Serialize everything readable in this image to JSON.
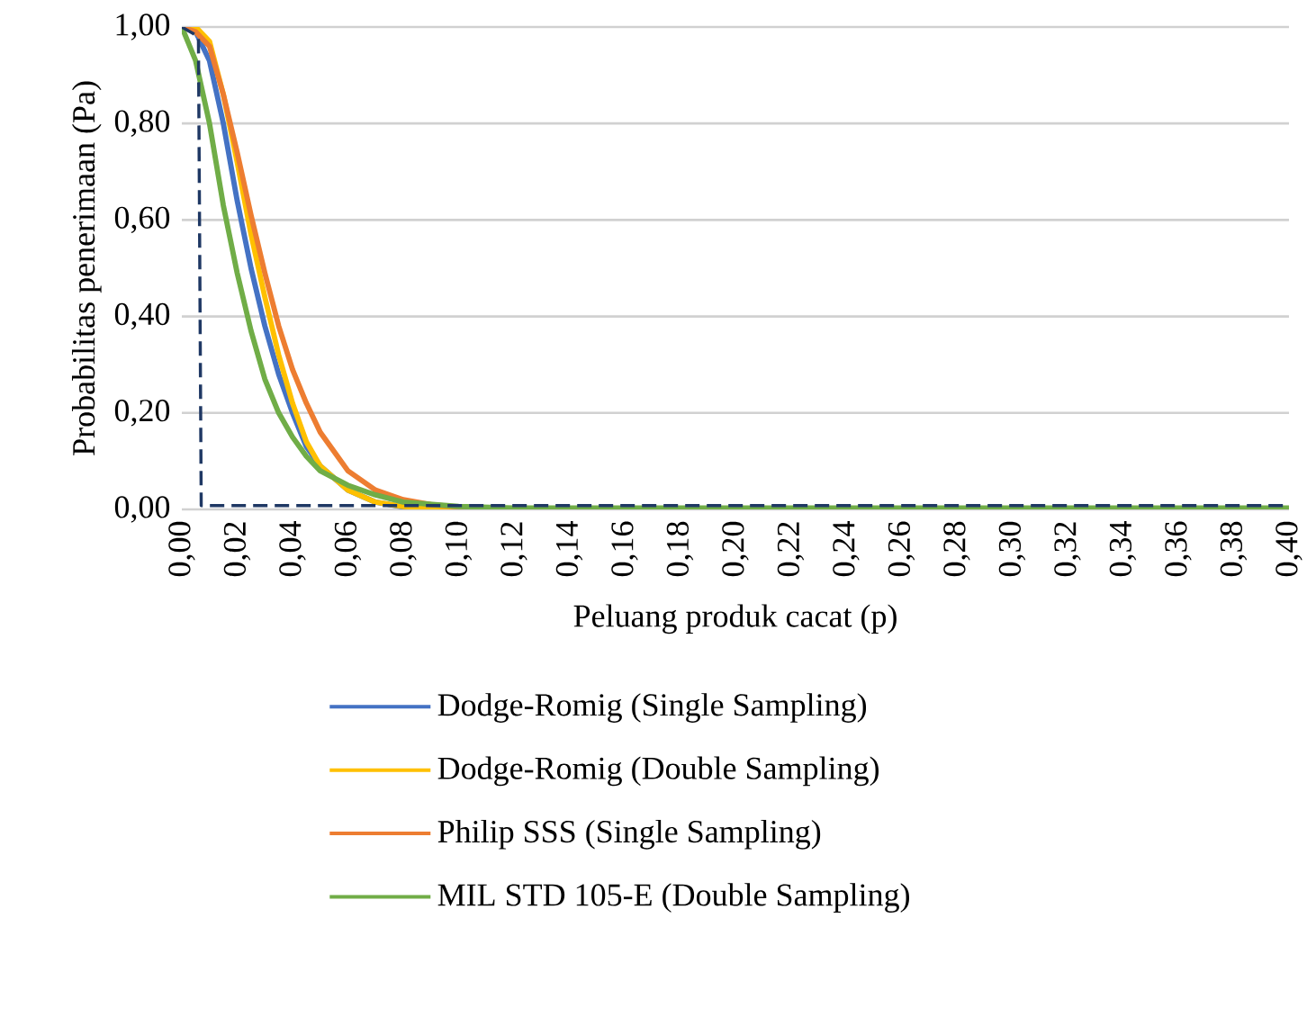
{
  "chart_data": {
    "type": "line",
    "xlabel": "Peluang produk cacat (p)",
    "ylabel": "Probabilitas penerimaan (Pa)",
    "xlim": [
      0,
      0.4
    ],
    "ylim": [
      0,
      1
    ],
    "xticks": [
      {
        "value": 0,
        "label": "0,00"
      },
      {
        "value": 0.02,
        "label": "0,02"
      },
      {
        "value": 0.04,
        "label": "0,04"
      },
      {
        "value": 0.06,
        "label": "0,06"
      },
      {
        "value": 0.08,
        "label": "0,08"
      },
      {
        "value": 0.1,
        "label": "0,10"
      },
      {
        "value": 0.12,
        "label": "0,12"
      },
      {
        "value": 0.14,
        "label": "0,14"
      },
      {
        "value": 0.16,
        "label": "0,16"
      },
      {
        "value": 0.18,
        "label": "0,18"
      },
      {
        "value": 0.2,
        "label": "0,20"
      },
      {
        "value": 0.22,
        "label": "0,22"
      },
      {
        "value": 0.24,
        "label": "0,24"
      },
      {
        "value": 0.26,
        "label": "0,26"
      },
      {
        "value": 0.28,
        "label": "0,28"
      },
      {
        "value": 0.3,
        "label": "0,30"
      },
      {
        "value": 0.32,
        "label": "0,32"
      },
      {
        "value": 0.34,
        "label": "0,34"
      },
      {
        "value": 0.36,
        "label": "0,36"
      },
      {
        "value": 0.38,
        "label": "0,38"
      },
      {
        "value": 0.4,
        "label": "0,40"
      }
    ],
    "yticks": [
      {
        "value": 0,
        "label": "0,00"
      },
      {
        "value": 0.2,
        "label": "0,20"
      },
      {
        "value": 0.4,
        "label": "0,40"
      },
      {
        "value": 0.6,
        "label": "0,60"
      },
      {
        "value": 0.8,
        "label": "0,80"
      },
      {
        "value": 1,
        "label": "1,00"
      }
    ],
    "grid": "y",
    "legend": "bottom",
    "marker": "none",
    "series": [
      {
        "name": "Dodge-Romig (Single Sampling)",
        "color": "#4472c4",
        "x": [
          0,
          0.005,
          0.01,
          0.015,
          0.02,
          0.025,
          0.03,
          0.035,
          0.04,
          0.045,
          0.05,
          0.06,
          0.07,
          0.08,
          0.1
        ],
        "values": [
          1,
          0.99,
          0.93,
          0.8,
          0.64,
          0.5,
          0.38,
          0.28,
          0.2,
          0.13,
          0.09,
          0.04,
          0.015,
          0.005,
          0.001
        ]
      },
      {
        "name": "Dodge-Romig (Double Sampling)",
        "color": "#ffc000",
        "x": [
          0,
          0.005,
          0.01,
          0.015,
          0.02,
          0.025,
          0.03,
          0.035,
          0.04,
          0.045,
          0.05,
          0.06,
          0.07,
          0.08,
          0.1
        ],
        "values": [
          1,
          1,
          0.97,
          0.86,
          0.72,
          0.57,
          0.44,
          0.32,
          0.22,
          0.14,
          0.09,
          0.04,
          0.015,
          0.006,
          0.001
        ]
      },
      {
        "name": "Philip SSS (Single Sampling)",
        "color": "#ed7d31",
        "x": [
          0,
          0.005,
          0.01,
          0.015,
          0.02,
          0.025,
          0.03,
          0.035,
          0.04,
          0.045,
          0.05,
          0.06,
          0.07,
          0.08,
          0.09,
          0.1,
          0.12
        ],
        "values": [
          1,
          0.99,
          0.96,
          0.86,
          0.74,
          0.61,
          0.49,
          0.38,
          0.29,
          0.22,
          0.16,
          0.08,
          0.04,
          0.02,
          0.01,
          0.005,
          0.001
        ]
      },
      {
        "name": "MIL STD 105-E (Double Sampling)",
        "color": "#70ad47",
        "x": [
          0,
          0.005,
          0.01,
          0.015,
          0.02,
          0.025,
          0.03,
          0.035,
          0.04,
          0.045,
          0.05,
          0.06,
          0.07,
          0.08,
          0.1,
          0.12,
          0.4
        ],
        "values": [
          1,
          0.93,
          0.8,
          0.63,
          0.49,
          0.37,
          0.27,
          0.2,
          0.15,
          0.11,
          0.08,
          0.05,
          0.03,
          0.015,
          0.006,
          0.003,
          0.003
        ]
      },
      {
        "color": "#1f3864",
        "line_style": "dashed",
        "x": [
          0,
          0.006,
          0.007,
          0.4
        ],
        "values": [
          1,
          0.98,
          0.008,
          0.008
        ]
      }
    ]
  }
}
